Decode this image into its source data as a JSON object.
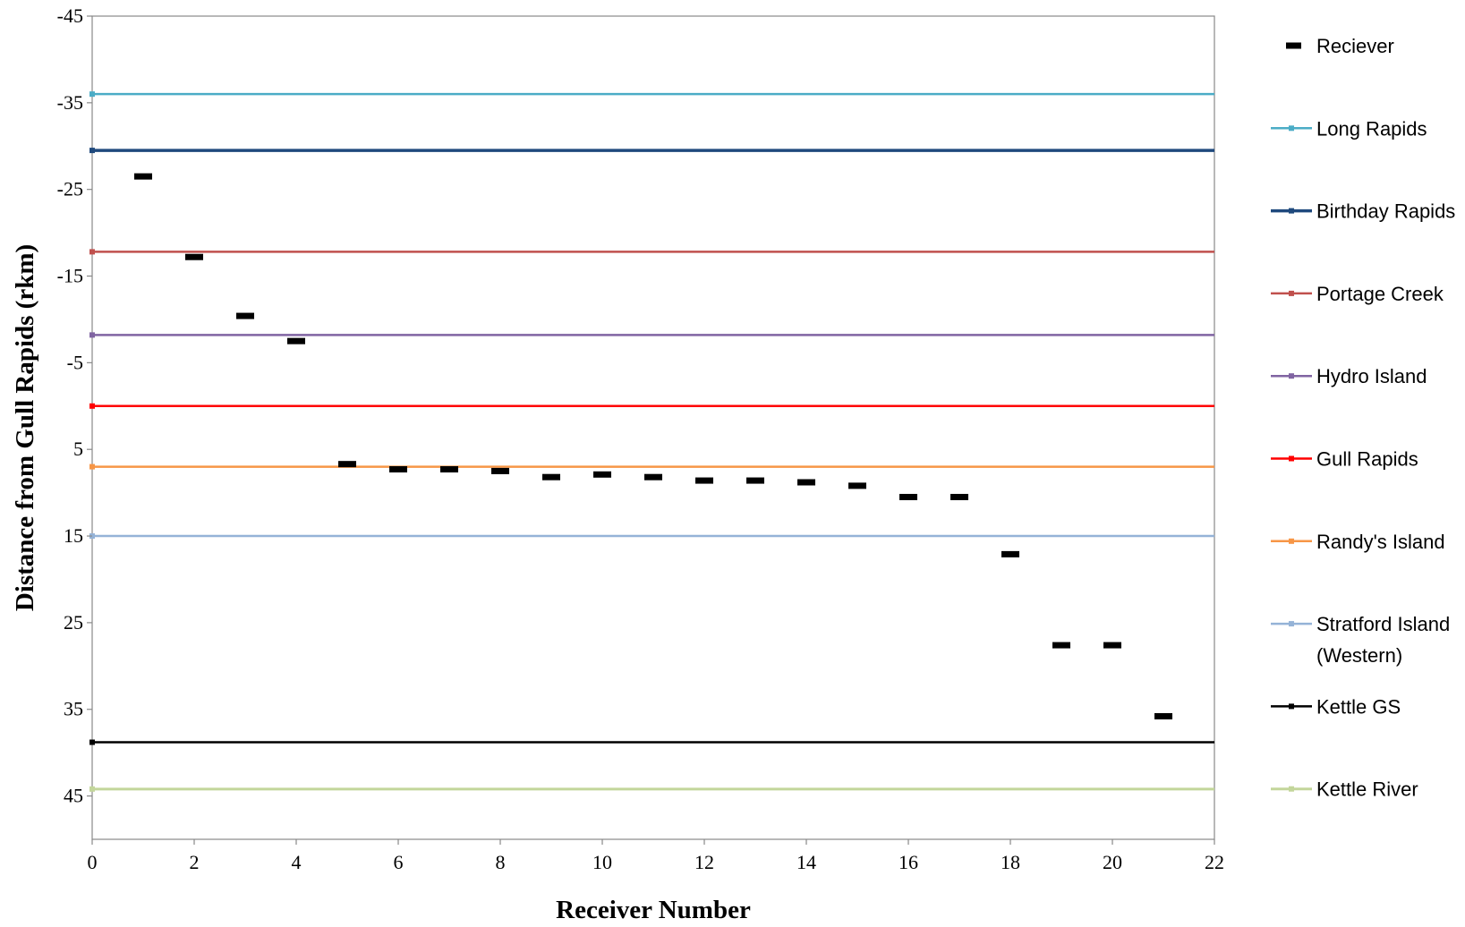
{
  "chart_data": {
    "type": "scatter",
    "title": "",
    "xlabel": "Receiver Number",
    "ylabel": "Distance from Gull Rapids (rkm)",
    "xlim": [
      0,
      22
    ],
    "ylim": [
      -45,
      50
    ],
    "y_reversed": true,
    "grid": false,
    "legend_position": "right",
    "x_ticks": [
      "0",
      "2",
      "4",
      "6",
      "8",
      "10",
      "12",
      "14",
      "16",
      "18",
      "20",
      "22"
    ],
    "y_ticks": [
      "-45",
      "-35",
      "-25",
      "-15",
      "-5",
      "5",
      "15",
      "25",
      "35",
      "45"
    ],
    "series": [
      {
        "name": "Reciever",
        "color": "#000000",
        "marker": "dash",
        "points": [
          {
            "x": 1,
            "y": -26.5
          },
          {
            "x": 2,
            "y": -17.2
          },
          {
            "x": 3,
            "y": -10.4
          },
          {
            "x": 4,
            "y": -7.5
          },
          {
            "x": 5,
            "y": 6.7
          },
          {
            "x": 6,
            "y": 7.3
          },
          {
            "x": 7,
            "y": 7.3
          },
          {
            "x": 8,
            "y": 7.5
          },
          {
            "x": 9,
            "y": 8.2
          },
          {
            "x": 10,
            "y": 7.9
          },
          {
            "x": 11,
            "y": 8.2
          },
          {
            "x": 12,
            "y": 8.6
          },
          {
            "x": 13,
            "y": 8.6
          },
          {
            "x": 14,
            "y": 8.8
          },
          {
            "x": 15,
            "y": 9.2
          },
          {
            "x": 16,
            "y": 10.5
          },
          {
            "x": 17,
            "y": 10.5
          },
          {
            "x": 18,
            "y": 17.1
          },
          {
            "x": 19,
            "y": 27.6
          },
          {
            "x": 20,
            "y": 27.6
          },
          {
            "x": 21,
            "y": 35.8
          }
        ]
      }
    ],
    "reference_lines": [
      {
        "name": "Long Rapids",
        "y": -36,
        "color": "#4bacc6",
        "width": 2.5
      },
      {
        "name": "Birthday Rapids",
        "y": -29.5,
        "color": "#1f497d",
        "width": 3.5
      },
      {
        "name": "Portage Creek",
        "y": -17.8,
        "color": "#c0504d",
        "width": 2.5
      },
      {
        "name": "Hydro Island",
        "y": -8.2,
        "color": "#8064a2",
        "width": 2.5
      },
      {
        "name": "Gull Rapids",
        "y": 0,
        "color": "#ff0000",
        "width": 2.5
      },
      {
        "name": "Randy's Island",
        "y": 7,
        "color": "#f79646",
        "width": 2.5
      },
      {
        "name": "Stratford Island",
        "name_line2": "(Western)",
        "y": 15,
        "color": "#95b3d7",
        "width": 2.5
      },
      {
        "name": "Kettle GS",
        "y": 38.8,
        "color": "#000000",
        "width": 2.5
      },
      {
        "name": "Kettle River",
        "y": 44.2,
        "color": "#c3d69b",
        "width": 3
      }
    ]
  }
}
